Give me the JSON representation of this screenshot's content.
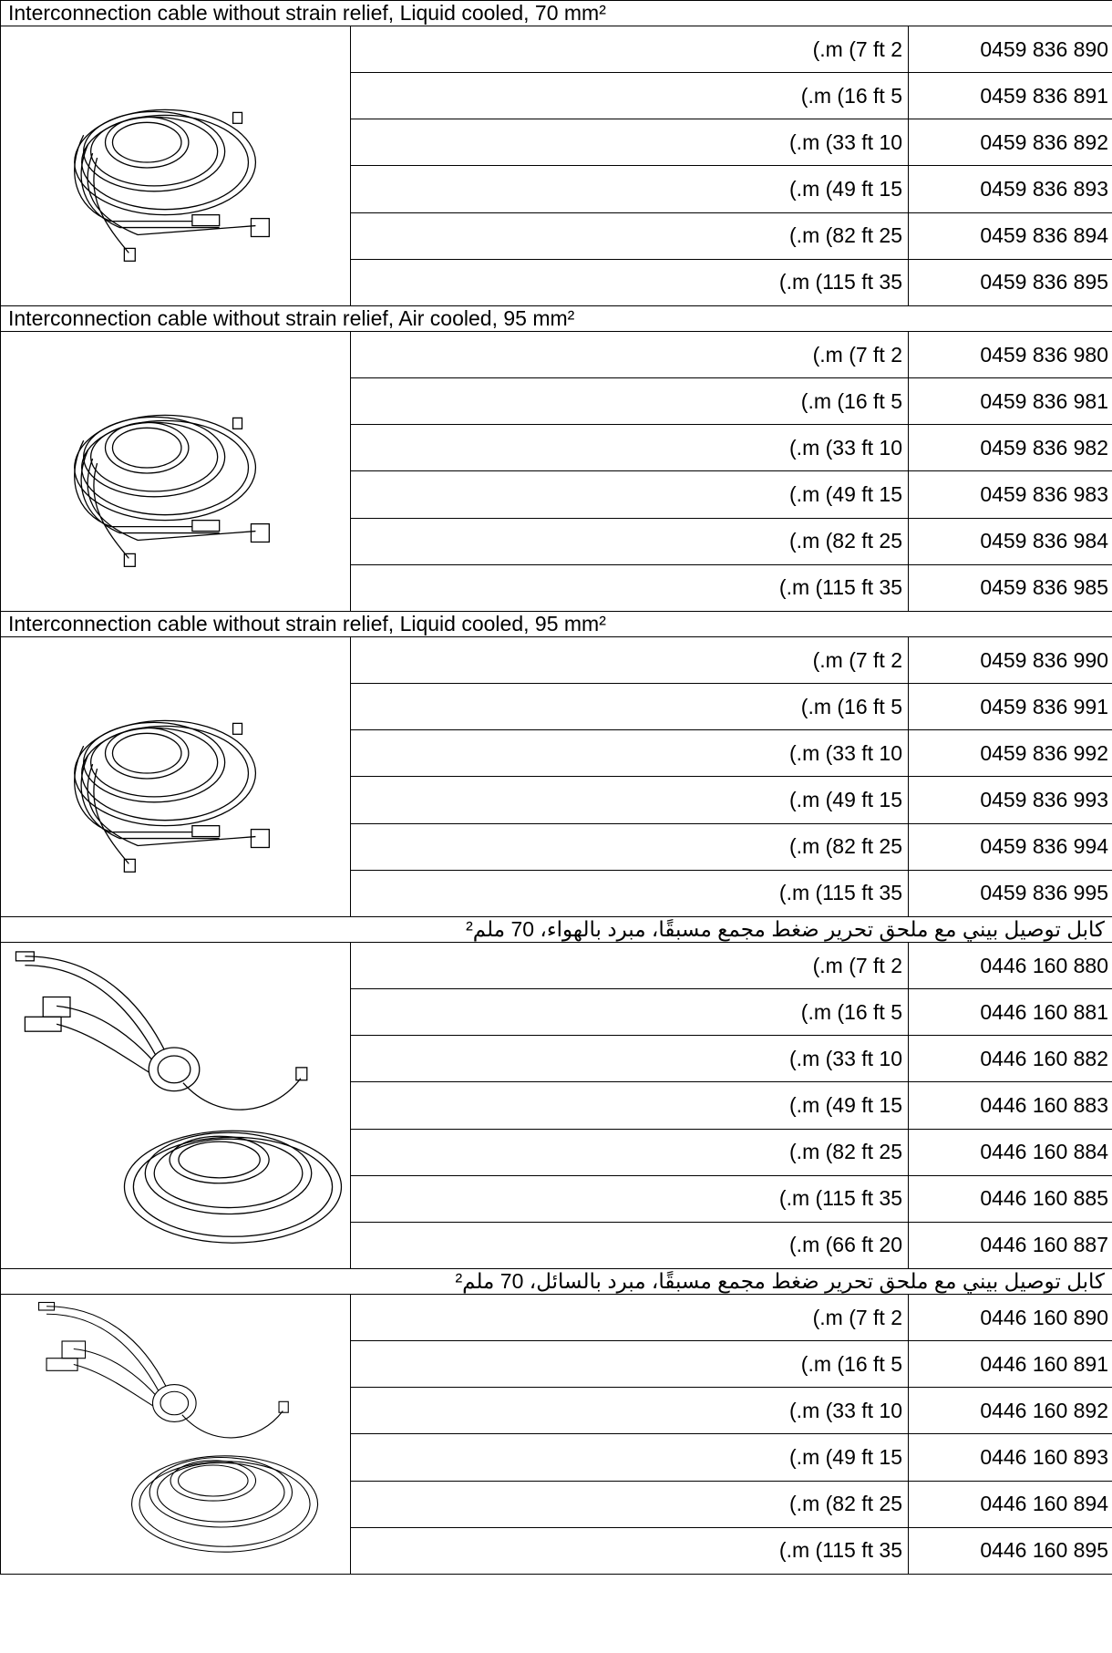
{
  "sections": [
    {
      "title": "Interconnection cable without strain relief, Liquid cooled, 70 mm²",
      "rows": [
        {
          "length": "(.m (7 ft 2",
          "part": "0459 836 890"
        },
        {
          "length": "(.m (16 ft 5",
          "part": "0459 836 891"
        },
        {
          "length": "(.m (33 ft 10",
          "part": "0459 836 892"
        },
        {
          "length": "(.m (49 ft 15",
          "part": "0459 836 893"
        },
        {
          "length": "(.m (82 ft 25",
          "part": "0459 836 894"
        },
        {
          "length": "(.m (115 ft 35",
          "part": "0459 836 895"
        }
      ]
    },
    {
      "title": "Interconnection cable without strain relief, Air cooled, 95 mm²",
      "rows": [
        {
          "length": "(.m (7 ft 2",
          "part": "0459 836 980"
        },
        {
          "length": "(.m (16 ft 5",
          "part": "0459 836 981"
        },
        {
          "length": "(.m (33 ft 10",
          "part": "0459 836 982"
        },
        {
          "length": "(.m (49 ft 15",
          "part": "0459 836 983"
        },
        {
          "length": "(.m (82 ft 25",
          "part": "0459 836 984"
        },
        {
          "length": "(.m (115 ft 35",
          "part": "0459 836 985"
        }
      ]
    },
    {
      "title": "Interconnection cable without strain relief, Liquid cooled, 95 mm²",
      "rows": [
        {
          "length": "(.m (7 ft 2",
          "part": "0459 836 990"
        },
        {
          "length": "(.m (16 ft 5",
          "part": "0459 836 991"
        },
        {
          "length": "(.m (33 ft 10",
          "part": "0459 836 992"
        },
        {
          "length": "(.m (49 ft 15",
          "part": "0459 836 993"
        },
        {
          "length": "(.m (82 ft 25",
          "part": "0459 836 994"
        },
        {
          "length": "(.m (115 ft 35",
          "part": "0459 836 995"
        }
      ]
    },
    {
      "title": "كابل توصيل بيني مع ملحق تحرير ضغط مجمع مسبقًا، مبرد بالهواء، 70 ملم²",
      "rtl": true,
      "rows": [
        {
          "length": "(.m (7 ft 2",
          "part": "0446 160 880"
        },
        {
          "length": "(.m (16 ft 5",
          "part": "0446 160 881"
        },
        {
          "length": "(.m (33 ft 10",
          "part": "0446 160 882"
        },
        {
          "length": "(.m (49 ft 15",
          "part": "0446 160 883"
        },
        {
          "length": "(.m (82 ft 25",
          "part": "0446 160 884"
        },
        {
          "length": "(.m (115 ft 35",
          "part": "0446 160 885"
        },
        {
          "length": "(.m (66 ft 20",
          "part": "0446 160 887"
        }
      ]
    },
    {
      "title": "كابل توصيل بيني مع ملحق تحرير ضغط مجمع مسبقًا، مبرد بالسائل، 70 ملم²",
      "rtl": true,
      "rows": [
        {
          "length": "(.m (7 ft 2",
          "part": "0446 160 890"
        },
        {
          "length": "(.m (16 ft 5",
          "part": "0446 160 891"
        },
        {
          "length": "(.m (33 ft 10",
          "part": "0446 160 892"
        },
        {
          "length": "(.m (49 ft 15",
          "part": "0446 160 893"
        },
        {
          "length": "(.m (82 ft 25",
          "part": "0446 160 894"
        },
        {
          "length": "(.m (115 ft 35",
          "part": "0446 160 895"
        }
      ]
    }
  ]
}
